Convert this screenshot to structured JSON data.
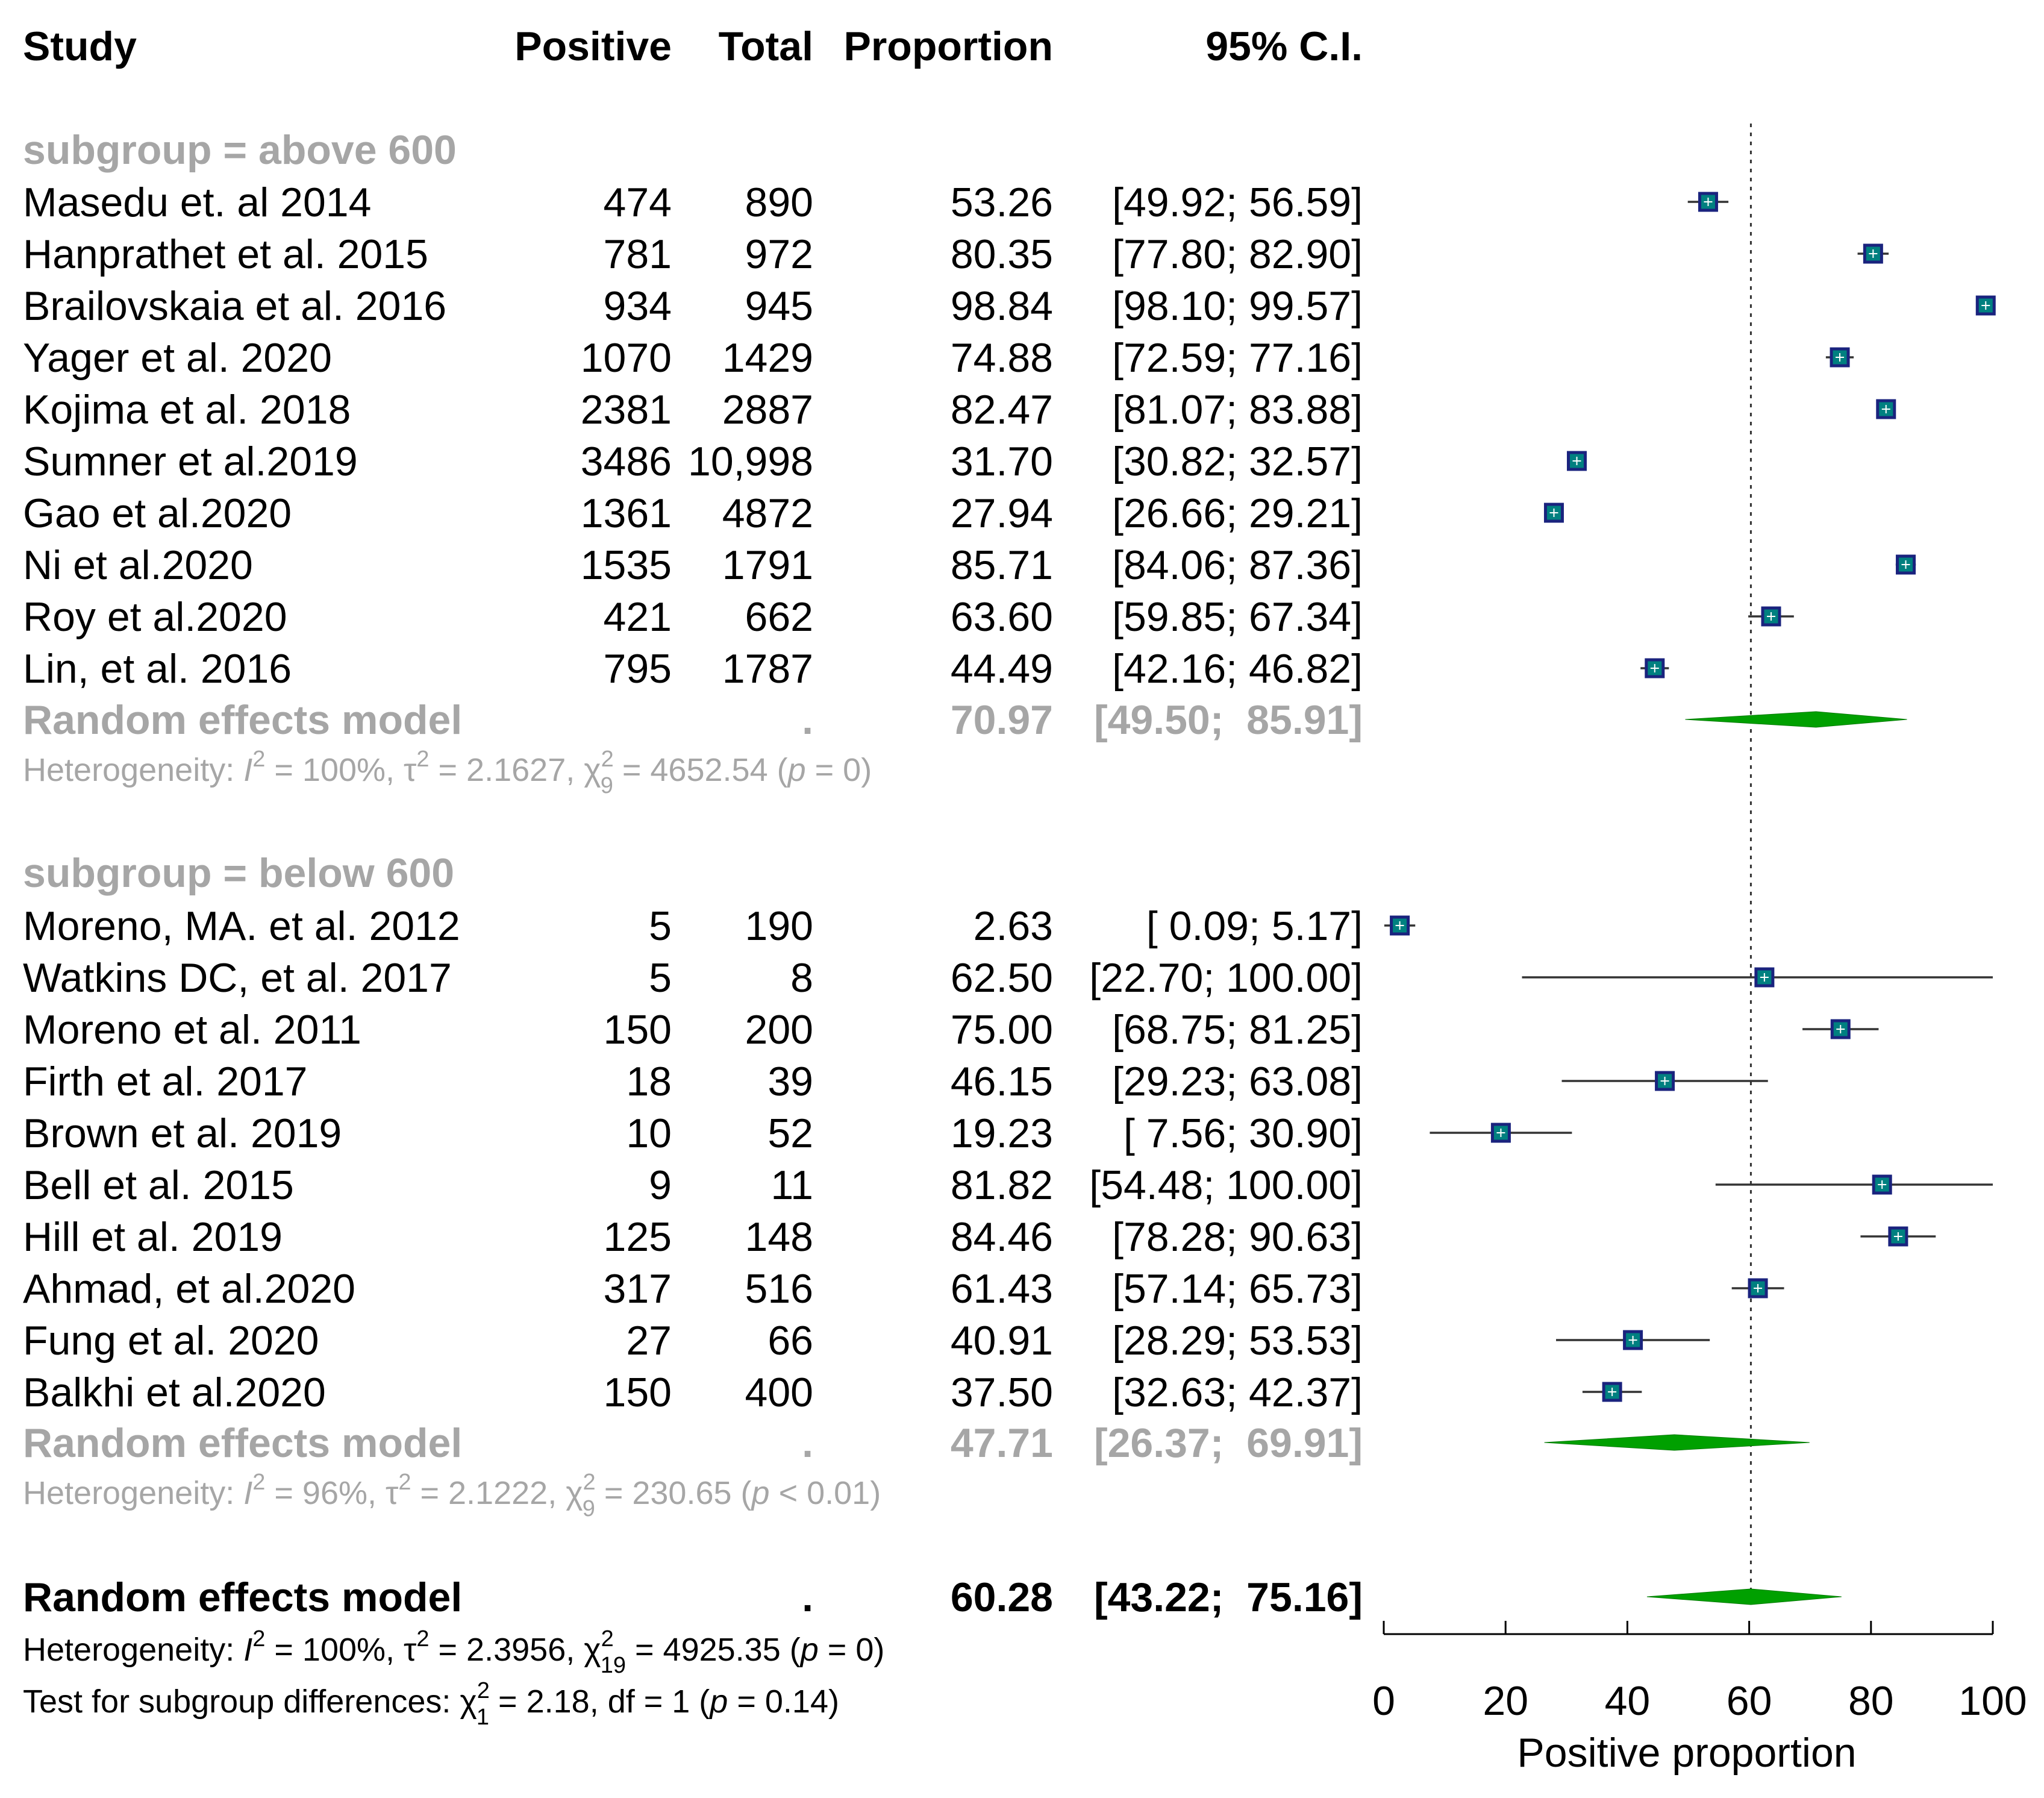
{
  "chart_data": {
    "type": "forest",
    "headers": {
      "study": "Study",
      "positive": "Positive",
      "total": "Total",
      "proportion": "Proportion",
      "ci": "95% C.I."
    },
    "subgroups": [
      {
        "label": "subgroup = above 600",
        "studies": [
          {
            "study": "Masedu et. al 2014",
            "positive": "474",
            "total": "890",
            "proportion": "53.26",
            "ci_text": "[49.92;  56.59]",
            "est": 53.26,
            "lo": 49.92,
            "hi": 56.59
          },
          {
            "study": "Hanprathet et al. 2015",
            "positive": "781",
            "total": "972",
            "proportion": "80.35",
            "ci_text": "[77.80;  82.90]",
            "est": 80.35,
            "lo": 77.8,
            "hi": 82.9
          },
          {
            "study": "Brailovskaia  et al. 2016",
            "positive": "934",
            "total": "945",
            "proportion": "98.84",
            "ci_text": "[98.10;  99.57]",
            "est": 98.84,
            "lo": 98.1,
            "hi": 99.57
          },
          {
            "study": "Yager et al. 2020",
            "positive": "1070",
            "total": "1429",
            "proportion": "74.88",
            "ci_text": "[72.59;  77.16]",
            "est": 74.88,
            "lo": 72.59,
            "hi": 77.16
          },
          {
            "study": "Kojima et al. 2018",
            "positive": "2381",
            "total": "2887",
            "proportion": "82.47",
            "ci_text": "[81.07;  83.88]",
            "est": 82.47,
            "lo": 81.07,
            "hi": 83.88
          },
          {
            "study": "Sumner et al.2019",
            "positive": "3486",
            "total": "10,998",
            "proportion": "31.70",
            "ci_text": "[30.82;  32.57]",
            "est": 31.7,
            "lo": 30.82,
            "hi": 32.57
          },
          {
            "study": "Gao et al.2020",
            "positive": "1361",
            "total": "4872",
            "proportion": "27.94",
            "ci_text": "[26.66;  29.21]",
            "est": 27.94,
            "lo": 26.66,
            "hi": 29.21
          },
          {
            "study": "Ni et al.2020",
            "positive": "1535",
            "total": "1791",
            "proportion": "85.71",
            "ci_text": "[84.06;  87.36]",
            "est": 85.71,
            "lo": 84.06,
            "hi": 87.36
          },
          {
            "study": "Roy et al.2020",
            "positive": "421",
            "total": "662",
            "proportion": "63.60",
            "ci_text": "[59.85;  67.34]",
            "est": 63.6,
            "lo": 59.85,
            "hi": 67.34
          },
          {
            "study": "Lin, et al. 2016",
            "positive": "795",
            "total": "1787",
            "proportion": "44.49",
            "ci_text": "[42.16;  46.82]",
            "est": 44.49,
            "lo": 42.16,
            "hi": 46.82
          }
        ],
        "model": {
          "label": "Random effects model",
          "positive": ".",
          "proportion": "70.97",
          "ci_text": "[49.50;  85.91]",
          "est": 70.97,
          "lo": 49.5,
          "hi": 85.91
        },
        "heterogeneity": {
          "prefix": "Heterogeneity: ",
          "I2": "I",
          "sup2": "2",
          "i_val": " = 100%, τ",
          "tau_val": " = 2.1627, χ",
          "chi_sub": "9",
          "chi_val": " = 4652.54 (",
          "p": "p",
          "p_val": " = 0)"
        }
      },
      {
        "label": "subgroup = below 600",
        "studies": [
          {
            "study": "Moreno, MA. et al. 2012",
            "positive": "5",
            "total": "190",
            "proportion": "2.63",
            "ci_text": "[ 0.09;   5.17]",
            "est": 2.63,
            "lo": 0.09,
            "hi": 5.17
          },
          {
            "study": "Watkins DC, et al. 2017",
            "positive": "5",
            "total": "8",
            "proportion": "62.50",
            "ci_text": "[22.70; 100.00]",
            "est": 62.5,
            "lo": 22.7,
            "hi": 100.0
          },
          {
            "study": "Moreno et al. 2011",
            "positive": "150",
            "total": "200",
            "proportion": "75.00",
            "ci_text": "[68.75;  81.25]",
            "est": 75.0,
            "lo": 68.75,
            "hi": 81.25
          },
          {
            "study": "Firth et al. 2017",
            "positive": "18",
            "total": "39",
            "proportion": "46.15",
            "ci_text": "[29.23;  63.08]",
            "est": 46.15,
            "lo": 29.23,
            "hi": 63.08
          },
          {
            "study": "Brown et al. 2019",
            "positive": "10",
            "total": "52",
            "proportion": "19.23",
            "ci_text": "[ 7.56;  30.90]",
            "est": 19.23,
            "lo": 7.56,
            "hi": 30.9
          },
          {
            "study": "Bell et al. 2015",
            "positive": "9",
            "total": "11",
            "proportion": "81.82",
            "ci_text": "[54.48; 100.00]",
            "est": 81.82,
            "lo": 54.48,
            "hi": 100.0
          },
          {
            "study": "Hill et al. 2019",
            "positive": "125",
            "total": "148",
            "proportion": "84.46",
            "ci_text": "[78.28;  90.63]",
            "est": 84.46,
            "lo": 78.28,
            "hi": 90.63
          },
          {
            "study": "Ahmad, et al.2020",
            "positive": "317",
            "total": "516",
            "proportion": "61.43",
            "ci_text": "[57.14;  65.73]",
            "est": 61.43,
            "lo": 57.14,
            "hi": 65.73
          },
          {
            "study": "Fung et al. 2020",
            "positive": "27",
            "total": "66",
            "proportion": "40.91",
            "ci_text": "[28.29;  53.53]",
            "est": 40.91,
            "lo": 28.29,
            "hi": 53.53
          },
          {
            "study": "Balkhi et al.2020",
            "positive": "150",
            "total": "400",
            "proportion": "37.50",
            "ci_text": "[32.63;  42.37]",
            "est": 37.5,
            "lo": 32.63,
            "hi": 42.37
          }
        ],
        "model": {
          "label": "Random effects model",
          "positive": ".",
          "proportion": "47.71",
          "ci_text": "[26.37;  69.91]",
          "est": 47.71,
          "lo": 26.37,
          "hi": 69.91
        },
        "heterogeneity": {
          "prefix": "Heterogeneity: ",
          "I2": "I",
          "sup2": "2",
          "i_val": " = 96%, τ",
          "tau_val": " = 2.1222, χ",
          "chi_sub": "9",
          "chi_val": " = 230.65 (",
          "p": "p",
          "p_val": " < 0.01)"
        }
      }
    ],
    "overall": {
      "model": {
        "label": "Random effects model",
        "positive": ".",
        "proportion": "60.28",
        "ci_text": "[43.22;  75.16]",
        "est": 60.28,
        "lo": 43.22,
        "hi": 75.16
      },
      "heterogeneity": {
        "prefix": "Heterogeneity: ",
        "I2": "I",
        "sup2": "2",
        "i_val": " = 100%, τ",
        "tau_val": " = 2.3956, χ",
        "chi_sub": "19",
        "chi_val": " = 4925.35 (",
        "p": "p",
        "p_val": " = 0)"
      },
      "subgroup_test": {
        "prefix": "Test for subgroup differences: χ",
        "sub": "1",
        "sup": "2",
        "val": " = 2.18, df = 1 (",
        "p": "p",
        "p_val": " = 0.14)"
      }
    },
    "x_axis": {
      "label": "Positive proportion",
      "ticks": [
        0,
        20,
        40,
        60,
        80,
        100
      ],
      "range": [
        0,
        100
      ],
      "reference_line": 60.28
    },
    "colors": {
      "square_fill": "#008080",
      "square_border": "#1a237e",
      "diamond": "#00a000",
      "grey_text": "#a6a6a6"
    }
  }
}
